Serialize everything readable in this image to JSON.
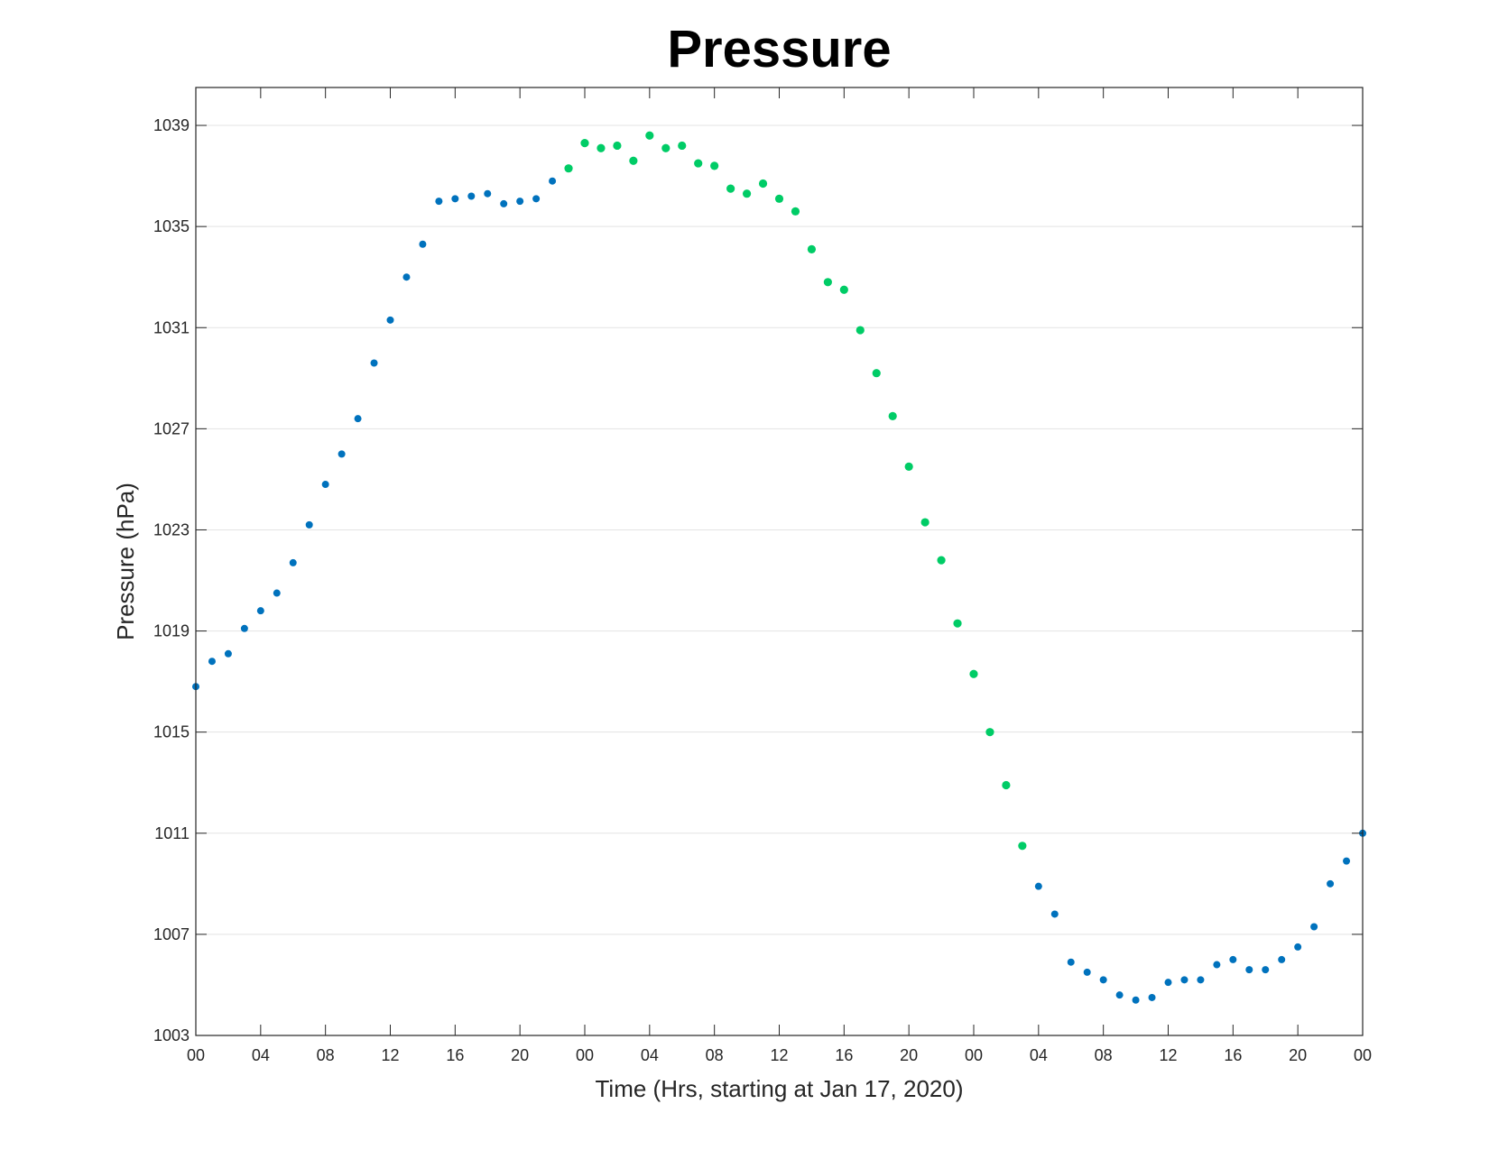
{
  "chart_data": {
    "type": "scatter",
    "title": "Pressure",
    "xlabel": "Time (Hrs, starting at Jan 17, 2020)",
    "ylabel": "Pressure (hPa)",
    "xlim": [
      0,
      72
    ],
    "ylim": [
      1003,
      1040.5
    ],
    "x_tick_values": [
      0,
      4,
      8,
      12,
      16,
      20,
      24,
      28,
      32,
      36,
      40,
      44,
      48,
      52,
      56,
      60,
      64,
      68,
      72
    ],
    "x_tick_labels": [
      "00",
      "04",
      "08",
      "12",
      "16",
      "20",
      "00",
      "04",
      "08",
      "12",
      "16",
      "20",
      "00",
      "04",
      "08",
      "12",
      "16",
      "20",
      "00"
    ],
    "y_tick_values": [
      1003,
      1007,
      1011,
      1015,
      1019,
      1023,
      1027,
      1031,
      1035,
      1039
    ],
    "y_tick_labels": [
      "1003",
      "1007",
      "1011",
      "1015",
      "1019",
      "1023",
      "1027",
      "1031",
      "1035",
      "1039"
    ],
    "grid": "horizontal",
    "colors": {
      "blue": "#0072BD",
      "green": "#00CC66",
      "grid": "#e3e3e3",
      "axis": "#262626"
    },
    "series": [
      {
        "color": "blue",
        "x": [
          0,
          1,
          2,
          3,
          4,
          5,
          6,
          7,
          8,
          9,
          10,
          11,
          12,
          13,
          14,
          15,
          16,
          17,
          18,
          19,
          20,
          21,
          22
        ],
        "y": [
          1016.8,
          1017.8,
          1018.1,
          1019.1,
          1019.8,
          1020.5,
          1021.7,
          1023.2,
          1024.8,
          1026.0,
          1027.4,
          1029.6,
          1031.3,
          1033.0,
          1034.3,
          1036.0,
          1036.1,
          1036.2,
          1036.3,
          1035.9,
          1036.0,
          1036.1,
          1036.8
        ]
      },
      {
        "color": "green",
        "x": [
          23,
          24,
          25,
          26,
          27,
          28,
          29,
          30,
          31,
          32,
          33,
          34,
          35,
          36,
          37,
          38,
          39,
          40,
          41,
          42,
          43,
          44,
          45,
          46,
          47,
          48,
          49,
          50,
          51
        ],
        "y": [
          1037.3,
          1038.3,
          1038.1,
          1038.2,
          1037.6,
          1038.6,
          1038.1,
          1038.2,
          1037.5,
          1037.4,
          1036.5,
          1036.3,
          1036.7,
          1036.1,
          1035.6,
          1034.1,
          1032.8,
          1032.5,
          1030.9,
          1029.2,
          1027.5,
          1025.5,
          1023.3,
          1021.8,
          1019.3,
          1017.3,
          1015.0,
          1012.9,
          1010.5
        ]
      },
      {
        "color": "blue",
        "x": [
          52,
          53,
          54,
          55,
          56,
          57,
          58,
          59,
          60,
          61,
          62,
          63,
          64,
          65,
          66,
          67,
          68,
          69,
          70,
          71,
          72
        ],
        "y": [
          1008.9,
          1007.8,
          1005.9,
          1005.5,
          1005.2,
          1004.6,
          1004.4,
          1004.5,
          1005.1,
          1005.2,
          1005.2,
          1005.8,
          1006.0,
          1005.6,
          1005.6,
          1006.0,
          1006.5,
          1007.3,
          1009.0,
          1009.9,
          1011.0
        ]
      }
    ]
  }
}
